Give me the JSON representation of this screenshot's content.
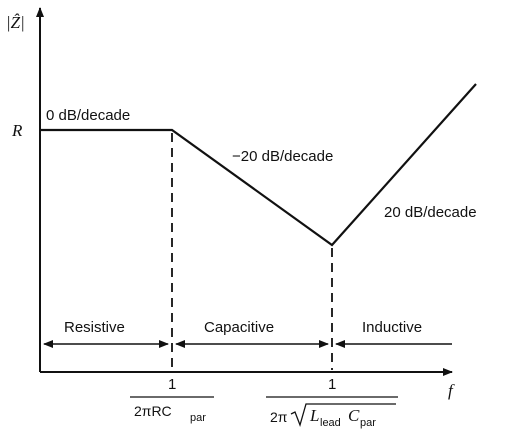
{
  "axes": {
    "y_label": "|Ẑ|",
    "y_tick": "R",
    "x_label": "f"
  },
  "slopes": {
    "flat": "0 dB/decade",
    "down": "−20 dB/decade",
    "up": "20 dB/decade"
  },
  "regions": {
    "resistive": "Resistive",
    "capacitive": "Capacitive",
    "inductive": "Inductive"
  },
  "breakpoints": {
    "first": {
      "numerator": "1",
      "den_prefix": "2πRC",
      "den_sub": "par"
    },
    "second": {
      "numerator": "1",
      "den_prefix": "2π",
      "den_L": "L",
      "den_L_sub": "lead",
      "den_C": "C",
      "den_C_sub": "par"
    }
  }
}
